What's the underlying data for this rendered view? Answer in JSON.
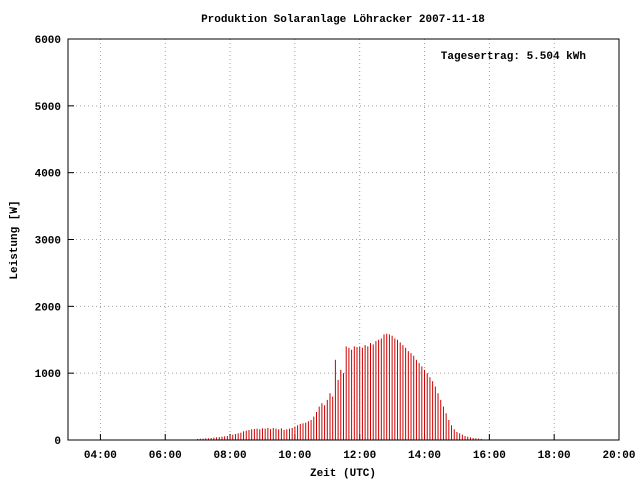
{
  "chart_data": {
    "type": "impulse",
    "title": "Produktion Solaranlage Löhracker 2007-11-18",
    "annotation": "Tagesertrag: 5.504 kWh",
    "x_label": "Zeit (UTC)",
    "y_label": "Leistung [W]",
    "color": "#cc0000",
    "grid": true,
    "xlim": [
      180,
      1200
    ],
    "ylim": [
      0,
      6000
    ],
    "xticks": [
      {
        "value": 240,
        "label": "04:00"
      },
      {
        "value": 360,
        "label": "06:00"
      },
      {
        "value": 480,
        "label": "08:00"
      },
      {
        "value": 600,
        "label": "10:00"
      },
      {
        "value": 720,
        "label": "12:00"
      },
      {
        "value": 840,
        "label": "14:00"
      },
      {
        "value": 960,
        "label": "16:00"
      },
      {
        "value": 1080,
        "label": "18:00"
      },
      {
        "value": 1200,
        "label": "20:00"
      }
    ],
    "yticks": [
      0,
      1000,
      2000,
      3000,
      4000,
      5000,
      6000
    ],
    "x": [
      420,
      425,
      430,
      435,
      440,
      445,
      450,
      455,
      460,
      465,
      470,
      475,
      480,
      485,
      490,
      495,
      500,
      505,
      510,
      515,
      520,
      525,
      530,
      535,
      540,
      545,
      550,
      555,
      560,
      565,
      570,
      575,
      580,
      585,
      590,
      595,
      600,
      605,
      610,
      615,
      620,
      625,
      630,
      635,
      640,
      645,
      650,
      655,
      660,
      665,
      670,
      675,
      680,
      685,
      690,
      695,
      700,
      705,
      710,
      715,
      720,
      725,
      730,
      735,
      740,
      745,
      750,
      755,
      760,
      765,
      770,
      775,
      780,
      785,
      790,
      795,
      800,
      805,
      810,
      815,
      820,
      825,
      830,
      835,
      840,
      845,
      850,
      855,
      860,
      865,
      870,
      875,
      880,
      885,
      890,
      895,
      900,
      905,
      910,
      915,
      920,
      925,
      930,
      935,
      940,
      945
    ],
    "values": [
      15,
      20,
      20,
      25,
      25,
      30,
      35,
      40,
      45,
      50,
      55,
      60,
      70,
      80,
      90,
      100,
      110,
      130,
      140,
      150,
      160,
      165,
      170,
      160,
      175,
      170,
      180,
      165,
      180,
      170,
      160,
      175,
      150,
      160,
      170,
      180,
      200,
      220,
      240,
      250,
      260,
      280,
      300,
      350,
      420,
      500,
      550,
      520,
      600,
      700,
      650,
      1200,
      900,
      1050,
      1000,
      1400,
      1380,
      1350,
      1400,
      1390,
      1400,
      1380,
      1420,
      1400,
      1450,
      1430,
      1480,
      1500,
      1520,
      1580,
      1590,
      1580,
      1560,
      1520,
      1500,
      1460,
      1420,
      1380,
      1330,
      1300,
      1260,
      1200,
      1150,
      1100,
      1050,
      1000,
      940,
      880,
      800,
      700,
      600,
      500,
      400,
      300,
      220,
      160,
      120,
      100,
      80,
      60,
      50,
      40,
      30,
      25,
      20,
      15
    ]
  }
}
